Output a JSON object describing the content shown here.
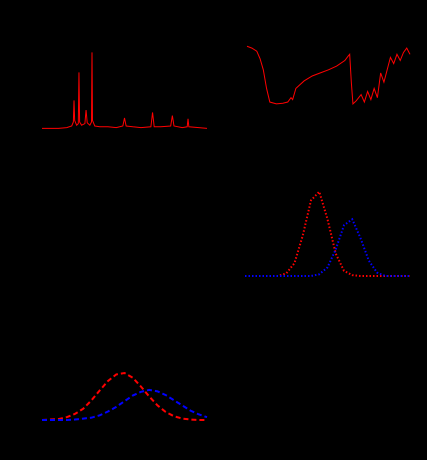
{
  "chart_data": [
    {
      "type": "line",
      "xlim": [
        0,
        100
      ],
      "ylim": [
        0,
        100
      ],
      "x": [
        0,
        10,
        15,
        18,
        19,
        19.4,
        19.8,
        21,
        22,
        22.4,
        22.8,
        24,
        26,
        26.7,
        27.4,
        29,
        30,
        30.3,
        30.6,
        32,
        35,
        40,
        45,
        49,
        50,
        51,
        55,
        60,
        66,
        67,
        68,
        72,
        78,
        79,
        80,
        85,
        88,
        88.5,
        89,
        95,
        100
      ],
      "series": [
        {
          "color": "#ff0000",
          "linestyle": "solid",
          "values": [
            2,
            2,
            3,
            5,
            10,
            37,
            12,
            6,
            8,
            72,
            10,
            6,
            8,
            25,
            9,
            6,
            10,
            97,
            12,
            5,
            4,
            4,
            3,
            5,
            15,
            5,
            4,
            3,
            4,
            22,
            4,
            4,
            5,
            18,
            5,
            3,
            4,
            14,
            4,
            3,
            2
          ]
        }
      ]
    },
    {
      "type": "line",
      "xlim": [
        0,
        100
      ],
      "ylim": [
        0,
        100
      ],
      "x": [
        0,
        3,
        6,
        8,
        10,
        12,
        14,
        18,
        22,
        25,
        27,
        28,
        30,
        35,
        40,
        45,
        50,
        55,
        60,
        62,
        63,
        64,
        65,
        67,
        70,
        72,
        74,
        76,
        78,
        80,
        82,
        84,
        86,
        88,
        90,
        92,
        94,
        96,
        98,
        100
      ],
      "series": [
        {
          "color": "#ff0000",
          "linestyle": "solid",
          "values": [
            98,
            95,
            90,
            78,
            60,
            30,
            8,
            5,
            6,
            8,
            15,
            12,
            30,
            42,
            50,
            55,
            60,
            66,
            75,
            82,
            85,
            40,
            5,
            10,
            20,
            8,
            25,
            12,
            30,
            15,
            55,
            40,
            60,
            80,
            70,
            85,
            75,
            88,
            95,
            85
          ]
        }
      ]
    },
    {
      "type": "line",
      "xlim": [
        0,
        100
      ],
      "ylim": [
        0,
        100
      ],
      "x": [
        0,
        5,
        10,
        15,
        20,
        25,
        30,
        35,
        40,
        45,
        50,
        55,
        60,
        65,
        70,
        75,
        80,
        85,
        90,
        95,
        100
      ],
      "series": [
        {
          "color": "#ff0000",
          "linestyle": "dotted",
          "values": [
            0,
            0,
            0,
            0,
            0,
            3,
            15,
            47,
            88,
            98,
            66,
            26,
            6,
            1,
            0,
            0,
            0,
            0,
            0,
            0,
            0
          ]
        },
        {
          "color": "#0000ff",
          "linestyle": "dotted",
          "values": [
            0,
            0,
            0,
            0,
            0,
            0,
            0,
            0,
            0,
            2,
            10,
            31,
            59,
            66,
            44,
            18,
            4,
            0,
            0,
            0,
            0
          ]
        }
      ]
    },
    {
      "type": "line",
      "xlim": [
        0,
        100
      ],
      "ylim": [
        0,
        100
      ],
      "x": [
        0,
        5,
        10,
        15,
        20,
        25,
        30,
        35,
        40,
        45,
        50,
        55,
        60,
        65,
        70,
        75,
        80,
        85,
        90,
        95,
        100
      ],
      "series": [
        {
          "color": "#ff0000",
          "linestyle": "dashed",
          "values": [
            0,
            1,
            2,
            6,
            13,
            24,
            42,
            63,
            83,
            97,
            100,
            90,
            71,
            50,
            31,
            17,
            8,
            3,
            1,
            0,
            0
          ]
        },
        {
          "color": "#0000ff",
          "linestyle": "dashed",
          "values": [
            0,
            0,
            0,
            0,
            1,
            3,
            5,
            10,
            18,
            28,
            40,
            52,
            60,
            64,
            61,
            53,
            42,
            31,
            20,
            12,
            6
          ]
        }
      ]
    }
  ]
}
